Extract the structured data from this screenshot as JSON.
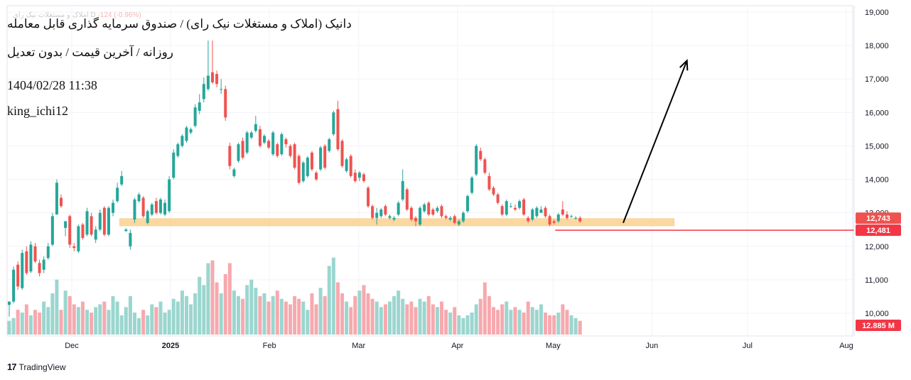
{
  "header": {
    "title": "دانیک (املاک و مستغلات نیک رای) / صندوق سرمایه گذاری قابل معامله",
    "subtitle": "روزانه / آخرین قیمت / بدون تعدیل",
    "timestamp": "1404/02/28 11:38",
    "author": "king_ichi12",
    "legend_ghost_name": "املاک و مستغلات نیک رای D",
    "legend_ghost_change": "-124 (-0.96%)"
  },
  "branding": {
    "logo": "17",
    "name": "TradingView"
  },
  "colors": {
    "up": "#26a69a",
    "down": "#ef5350",
    "up_volume": "#9bd6cf",
    "down_volume": "#f7a9ae",
    "support_zone": "#fcd7a0",
    "current_price_label": "#f23645",
    "grid": "#f0f3fa",
    "axis_text": "#131722",
    "arrow": "#000000"
  },
  "chart_data": {
    "type": "candlestick",
    "yaxis": {
      "ticks": [
        "19,000",
        "18,000",
        "17,000",
        "16,000",
        "15,000",
        "14,000",
        "13,000",
        "12,000",
        "11,000",
        "10,000"
      ],
      "tick_values": [
        19000,
        18000,
        17000,
        16000,
        15000,
        14000,
        13000,
        12000,
        11000,
        10000
      ],
      "range": [
        9400,
        19150
      ]
    },
    "xaxis": {
      "labels": [
        "Dec",
        "2025",
        "Feb",
        "Mar",
        "Apr",
        "May",
        "Jun",
        "Jul",
        "Aug"
      ],
      "label_dates": [
        "2024-12-01",
        "2025-01-01",
        "2025-02-01",
        "2025-03-01",
        "2025-04-01",
        "2025-05-01",
        "2025-06-01",
        "2025-07-01",
        "2025-08-01"
      ]
    },
    "price_labels": [
      {
        "text": "12,743",
        "value": 12743,
        "color": "#ef5350"
      },
      {
        "text": "12,481",
        "value": 12481,
        "color": "#f23645"
      }
    ],
    "volume_label": {
      "text": "12.885 M",
      "color": "#f23645"
    },
    "support_zone": {
      "low": 12610,
      "high": 12830,
      "from_date": "2024-12-16",
      "to_date": "2025-06-08"
    },
    "target_arrow": {
      "from_date": "2025-05-23",
      "from_value": 12700,
      "to_date": "2025-06-12",
      "to_value": 17550
    },
    "candles_open_close": [
      [
        10250,
        10350
      ],
      [
        10350,
        11300
      ],
      [
        11450,
        10800
      ],
      [
        10750,
        11800
      ],
      [
        11850,
        11200
      ],
      [
        11250,
        12050
      ],
      [
        12000,
        11550
      ],
      [
        11500,
        11200
      ],
      [
        11300,
        11600
      ],
      [
        11650,
        12000
      ],
      [
        12050,
        12900
      ],
      [
        12950,
        13900
      ],
      [
        13450,
        13200
      ],
      [
        12550,
        12750
      ],
      [
        12900,
        12050
      ],
      [
        12000,
        11950
      ],
      [
        11850,
        12600
      ],
      [
        12650,
        12250
      ],
      [
        12350,
        13050
      ],
      [
        12900,
        12350
      ],
      [
        12200,
        12500
      ],
      [
        12500,
        13000
      ],
      [
        13150,
        12350
      ],
      [
        12350,
        13150
      ],
      [
        13000,
        13300
      ],
      [
        13350,
        13750
      ],
      [
        13850,
        14100
      ],
      [
        12450,
        12500
      ],
      [
        12000,
        12400
      ],
      [
        12800,
        13400
      ],
      [
        13350,
        13550
      ],
      [
        13450,
        12900
      ],
      [
        12700,
        13050
      ],
      [
        12950,
        13250
      ],
      [
        13350,
        13000
      ],
      [
        13000,
        13400
      ],
      [
        12950,
        13300
      ],
      [
        13050,
        14000
      ],
      [
        14050,
        14800
      ],
      [
        14700,
        15050
      ],
      [
        15000,
        15300
      ],
      [
        15150,
        15550
      ],
      [
        15400,
        15500
      ],
      [
        15600,
        16150
      ],
      [
        16050,
        16300
      ],
      [
        16400,
        16850
      ],
      [
        16700,
        17100
      ],
      [
        17200,
        16900
      ],
      [
        17150,
        16850
      ],
      [
        16700,
        16700
      ],
      [
        16700,
        15850
      ],
      [
        15000,
        14400
      ],
      [
        14100,
        14300
      ],
      [
        14550,
        15050
      ],
      [
        15150,
        14650
      ],
      [
        14800,
        15400
      ],
      [
        15250,
        15400
      ],
      [
        15450,
        15650
      ],
      [
        15500,
        15000
      ],
      [
        15100,
        15300
      ],
      [
        15150,
        14950
      ],
      [
        14750,
        15400
      ],
      [
        15050,
        14700
      ],
      [
        14750,
        15350
      ],
      [
        15200,
        15050
      ],
      [
        15000,
        14700
      ],
      [
        15050,
        14350
      ],
      [
        14700,
        13900
      ],
      [
        13950,
        14500
      ],
      [
        14100,
        14650
      ],
      [
        14800,
        14300
      ],
      [
        14200,
        14000
      ],
      [
        14300,
        14950
      ],
      [
        15000,
        14350
      ],
      [
        14850,
        15200
      ],
      [
        15350,
        16000
      ],
      [
        16100,
        14900
      ],
      [
        15150,
        14400
      ],
      [
        14250,
        14600
      ],
      [
        14700,
        14100
      ],
      [
        14200,
        13950
      ],
      [
        14050,
        14200
      ],
      [
        14150,
        13950
      ],
      [
        13750,
        13200
      ],
      [
        13200,
        12850
      ],
      [
        12850,
        13000
      ],
      [
        12900,
        13100
      ],
      [
        13200,
        12950
      ],
      [
        12850,
        12900
      ],
      [
        12800,
        12850
      ],
      [
        12950,
        13300
      ],
      [
        13400,
        13950
      ],
      [
        13700,
        13100
      ],
      [
        13150,
        12800
      ],
      [
        12850,
        12750
      ],
      [
        12650,
        13150
      ],
      [
        13050,
        13250
      ],
      [
        13300,
        12950
      ],
      [
        13100,
        12950
      ],
      [
        13050,
        13150
      ],
      [
        13200,
        12900
      ],
      [
        12900,
        12850
      ],
      [
        12800,
        12850
      ],
      [
        12900,
        12700
      ],
      [
        12650,
        12750
      ],
      [
        12750,
        13000
      ],
      [
        13050,
        13500
      ],
      [
        13600,
        14050
      ],
      [
        14150,
        15000
      ],
      [
        14850,
        14600
      ],
      [
        14600,
        14200
      ],
      [
        14100,
        13700
      ],
      [
        13750,
        13550
      ],
      [
        13550,
        13300
      ],
      [
        13200,
        12950
      ],
      [
        12950,
        13350
      ],
      [
        13200,
        13200
      ],
      [
        13150,
        13100
      ],
      [
        13150,
        13350
      ],
      [
        13400,
        12950
      ],
      [
        12850,
        12750
      ],
      [
        12800,
        13100
      ],
      [
        12900,
        13150
      ],
      [
        13000,
        13100
      ],
      [
        13150,
        12900
      ],
      [
        12900,
        12650
      ],
      [
        12750,
        12700
      ],
      [
        12750,
        12950
      ],
      [
        13100,
        12950
      ],
      [
        12950,
        12850
      ],
      [
        12900,
        12900
      ],
      [
        12850,
        12850
      ],
      [
        12850,
        12743
      ]
    ],
    "candles_high_low": [
      [
        10350,
        9900
      ],
      [
        11400,
        10300
      ],
      [
        11550,
        10700
      ],
      [
        11900,
        10700
      ],
      [
        12000,
        11150
      ],
      [
        12150,
        11200
      ],
      [
        12100,
        11500
      ],
      [
        11600,
        11100
      ],
      [
        11700,
        11200
      ],
      [
        12100,
        11600
      ],
      [
        13000,
        12000
      ],
      [
        14000,
        12950
      ],
      [
        13550,
        13150
      ],
      [
        12750,
        12300
      ],
      [
        12950,
        11950
      ],
      [
        12100,
        11850
      ],
      [
        12650,
        11800
      ],
      [
        12700,
        12200
      ],
      [
        13150,
        12300
      ],
      [
        13000,
        12300
      ],
      [
        12600,
        12100
      ],
      [
        13100,
        12450
      ],
      [
        13200,
        12300
      ],
      [
        13200,
        12300
      ],
      [
        13400,
        12900
      ],
      [
        13900,
        13300
      ],
      [
        14250,
        13800
      ],
      [
        12550,
        12450
      ],
      [
        12500,
        11900
      ],
      [
        13450,
        12700
      ],
      [
        13600,
        13300
      ],
      [
        13500,
        12850
      ],
      [
        13100,
        12650
      ],
      [
        13300,
        12900
      ],
      [
        13450,
        12950
      ],
      [
        13450,
        12950
      ],
      [
        13400,
        12900
      ],
      [
        14100,
        13000
      ],
      [
        14900,
        14000
      ],
      [
        15100,
        14650
      ],
      [
        15350,
        14950
      ],
      [
        15600,
        15100
      ],
      [
        15550,
        15350
      ],
      [
        16250,
        15550
      ],
      [
        16550,
        15950
      ],
      [
        17050,
        16300
      ],
      [
        18150,
        16650
      ],
      [
        18150,
        16850
      ],
      [
        17250,
        16750
      ],
      [
        17000,
        16550
      ],
      [
        16800,
        15750
      ],
      [
        15100,
        14300
      ],
      [
        14350,
        14050
      ],
      [
        15100,
        14500
      ],
      [
        15250,
        14600
      ],
      [
        15450,
        14750
      ],
      [
        15450,
        15200
      ],
      [
        15900,
        15400
      ],
      [
        15600,
        14950
      ],
      [
        15350,
        15050
      ],
      [
        15200,
        14900
      ],
      [
        15450,
        14700
      ],
      [
        15100,
        14650
      ],
      [
        15400,
        14700
      ],
      [
        15250,
        14950
      ],
      [
        15050,
        14650
      ],
      [
        15100,
        14300
      ],
      [
        14750,
        13850
      ],
      [
        14550,
        13900
      ],
      [
        14700,
        14050
      ],
      [
        14850,
        14250
      ],
      [
        14250,
        13950
      ],
      [
        15000,
        14250
      ],
      [
        15050,
        14300
      ],
      [
        15250,
        14800
      ],
      [
        16050,
        15300
      ],
      [
        16350,
        14850
      ],
      [
        15200,
        14350
      ],
      [
        14650,
        14200
      ],
      [
        14750,
        14050
      ],
      [
        14300,
        13900
      ],
      [
        14250,
        13950
      ],
      [
        14200,
        13900
      ],
      [
        13800,
        13150
      ],
      [
        13250,
        12800
      ],
      [
        13150,
        12650
      ],
      [
        13150,
        12850
      ],
      [
        13250,
        12900
      ],
      [
        12950,
        12800
      ],
      [
        12900,
        12750
      ],
      [
        13350,
        12900
      ],
      [
        14300,
        13350
      ],
      [
        13750,
        13050
      ],
      [
        13200,
        12750
      ],
      [
        12900,
        12600
      ],
      [
        13200,
        12600
      ],
      [
        13300,
        13000
      ],
      [
        13350,
        12900
      ],
      [
        13150,
        12900
      ],
      [
        13200,
        13000
      ],
      [
        13250,
        12850
      ],
      [
        12950,
        12800
      ],
      [
        12900,
        12750
      ],
      [
        12950,
        12650
      ],
      [
        12800,
        12600
      ],
      [
        13050,
        12700
      ],
      [
        13550,
        13000
      ],
      [
        14100,
        13550
      ],
      [
        15050,
        14100
      ],
      [
        14950,
        14550
      ],
      [
        14650,
        14150
      ],
      [
        14200,
        13650
      ],
      [
        13800,
        13500
      ],
      [
        13600,
        13250
      ],
      [
        13250,
        12900
      ],
      [
        13400,
        12900
      ],
      [
        13300,
        13150
      ],
      [
        13250,
        13050
      ],
      [
        13400,
        13100
      ],
      [
        13450,
        12900
      ],
      [
        12900,
        12700
      ],
      [
        13150,
        12750
      ],
      [
        13200,
        12850
      ],
      [
        13200,
        13000
      ],
      [
        13200,
        12850
      ],
      [
        12950,
        12600
      ],
      [
        12800,
        12650
      ],
      [
        13000,
        12700
      ],
      [
        13350,
        12900
      ],
      [
        13050,
        12800
      ],
      [
        12950,
        12850
      ],
      [
        12900,
        12800
      ],
      [
        12900,
        12700
      ]
    ],
    "volume_millions": [
      5,
      6,
      9,
      8,
      11,
      7,
      9,
      8,
      12,
      10,
      15,
      20,
      9,
      16,
      14,
      11,
      10,
      12,
      9,
      8,
      10,
      11,
      12,
      9,
      14,
      12,
      7,
      10,
      14,
      8,
      6,
      9,
      7,
      11,
      10,
      12,
      8,
      9,
      13,
      12,
      16,
      14,
      11,
      15,
      21,
      18,
      26,
      27,
      19,
      15,
      22,
      26,
      16,
      14,
      13,
      18,
      20,
      17,
      14,
      15,
      12,
      14,
      16,
      13,
      12,
      11,
      14,
      13,
      12,
      9,
      15,
      11,
      17,
      14,
      25,
      28,
      19,
      15,
      12,
      10,
      14,
      16,
      18,
      15,
      13,
      12,
      10,
      11,
      12,
      14,
      16,
      13,
      11,
      12,
      10,
      13,
      12,
      14,
      11,
      10,
      12,
      9,
      8,
      10,
      7,
      6,
      7,
      8,
      11,
      13,
      19,
      14,
      10,
      9,
      11,
      12,
      9,
      10,
      9,
      8,
      12,
      10,
      9,
      11,
      8,
      7,
      7,
      8,
      11,
      9,
      7,
      6,
      5
    ],
    "volume_axis_max": 30
  }
}
